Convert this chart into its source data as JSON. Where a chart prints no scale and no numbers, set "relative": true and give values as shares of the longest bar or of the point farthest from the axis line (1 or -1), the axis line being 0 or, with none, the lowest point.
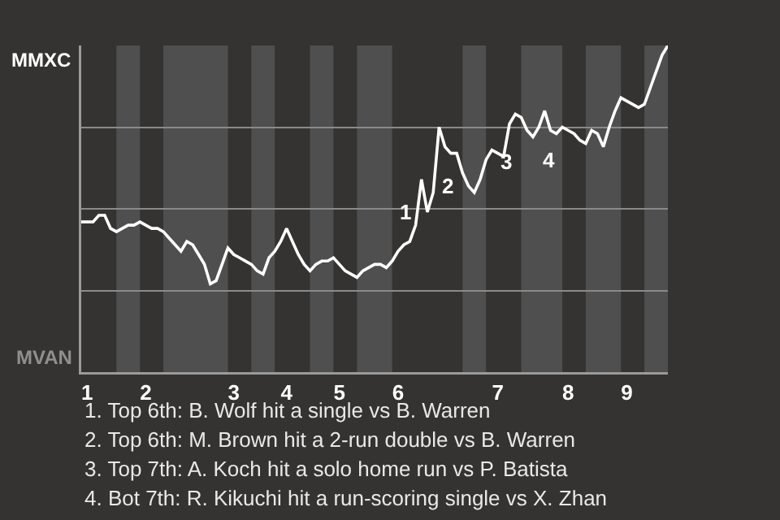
{
  "chart_data": {
    "type": "line",
    "relative": true,
    "categories": [
      null,
      "1",
      null,
      null,
      null,
      null,
      null,
      null,
      null,
      null,
      null,
      "2",
      null,
      null,
      null,
      null,
      null,
      null,
      null,
      null,
      null,
      null,
      null,
      null,
      null,
      null,
      "3",
      null,
      null,
      null,
      null,
      null,
      null,
      null,
      null,
      "4",
      null,
      null,
      null,
      null,
      null,
      null,
      null,
      null,
      "5",
      null,
      null,
      null,
      null,
      null,
      null,
      null,
      null,
      null,
      "6",
      null,
      null,
      null,
      null,
      null,
      null,
      null,
      null,
      null,
      null,
      null,
      null,
      null,
      null,
      null,
      null,
      "7",
      null,
      null,
      null,
      null,
      null,
      null,
      null,
      null,
      null,
      null,
      null,
      "8",
      null,
      null,
      null,
      null,
      null,
      null,
      null,
      null,
      null,
      "9",
      null,
      null,
      null,
      null,
      null,
      null,
      null
    ],
    "series": [
      {
        "color": "#ffffff",
        "values": [
          0.46,
          0.46,
          0.46,
          0.48,
          0.48,
          0.44,
          0.43,
          0.44,
          0.45,
          0.45,
          0.46,
          0.45,
          0.44,
          0.44,
          0.43,
          0.41,
          0.39,
          0.37,
          0.4,
          0.39,
          0.36,
          0.33,
          0.27,
          0.28,
          0.33,
          0.38,
          0.36,
          0.35,
          0.34,
          0.33,
          0.31,
          0.3,
          0.35,
          0.37,
          0.4,
          0.44,
          0.4,
          0.36,
          0.33,
          0.31,
          0.33,
          0.34,
          0.34,
          0.35,
          0.33,
          0.31,
          0.3,
          0.29,
          0.31,
          0.32,
          0.33,
          0.33,
          0.32,
          0.34,
          0.37,
          0.39,
          0.4,
          0.45,
          0.59,
          0.49,
          0.55,
          0.75,
          0.69,
          0.67,
          0.67,
          0.61,
          0.57,
          0.55,
          0.59,
          0.65,
          0.68,
          0.67,
          0.66,
          0.76,
          0.79,
          0.78,
          0.74,
          0.72,
          0.75,
          0.8,
          0.74,
          0.73,
          0.75,
          0.74,
          0.73,
          0.71,
          0.7,
          0.74,
          0.73,
          0.69,
          0.75,
          0.8,
          0.84,
          0.83,
          0.82,
          0.81,
          0.82,
          0.87,
          0.92,
          0.97,
          1
        ]
      }
    ],
    "grid": "y",
    "marker": "none",
    "line_style": "solid",
    "annotations": [
      "1",
      "2",
      "3",
      "4",
      "MMXC",
      "MVAN",
      "1. Top 6th: B. Wolf hit a single vs B. Warren",
      "2. Top 6th: M. Brown hit a 2-run double vs B. Warren",
      "3. Top 7th: A. Koch hit a solo home run vs P. Batista",
      "4. Bot 7th: R. Kikuchi hit a run-scoring single vs X. Zhan"
    ]
  }
}
